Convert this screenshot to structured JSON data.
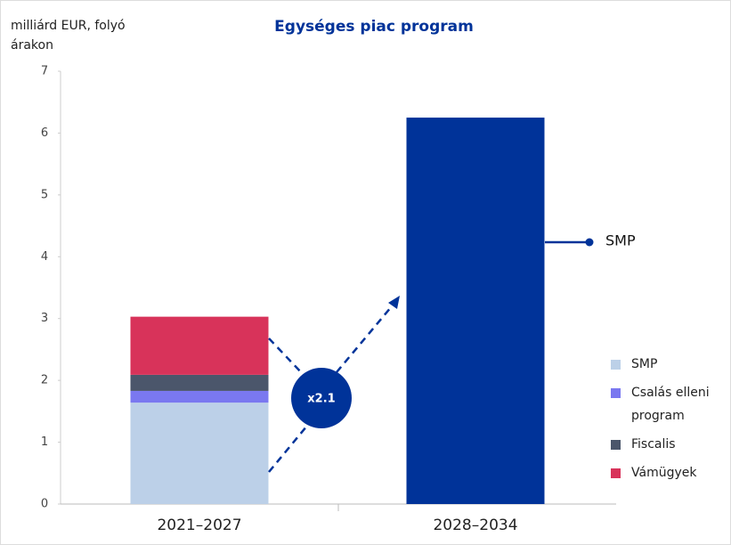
{
  "chart_data": {
    "type": "stacked_bar",
    "title": "Egységes piac program",
    "y_label": "milliárd EUR, folyó árakon",
    "categories": [
      "2021–2027",
      "2028–2034"
    ],
    "series": [
      {
        "name": "SMP",
        "color": "#bcd0e8",
        "colors": [
          "#bcd0e8",
          "#003399"
        ],
        "values": [
          1.64,
          6.25
        ]
      },
      {
        "name": "Csalás elleni program",
        "color": "#7a78f0",
        "values": [
          0.19,
          null
        ]
      },
      {
        "name": "Fiscalis",
        "color": "#4b566b",
        "values": [
          0.26,
          null
        ]
      },
      {
        "name": "Vámügyek",
        "color": "#d8335a",
        "values": [
          0.94,
          null
        ]
      }
    ],
    "annotations": [
      "x2.1"
    ],
    "ylim": [
      0,
      7
    ],
    "yticks": [
      0,
      1,
      2,
      3,
      4,
      5,
      6,
      7
    ],
    "legend": "right"
  }
}
